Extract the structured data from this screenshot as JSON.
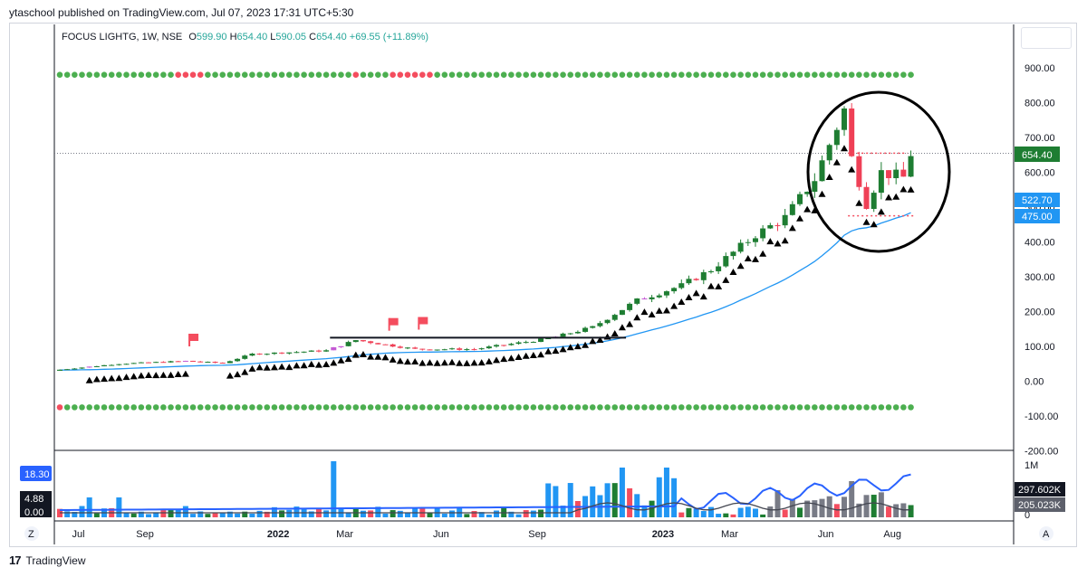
{
  "header": {
    "published": "ytaschool published on TradingView.com, Jul 07, 2023 17:31 UTC+5:30"
  },
  "legend": {
    "symbol": "FOCUS LIGHTG, 1W, NSE",
    "o_label": "O",
    "o": "599.90",
    "h_label": "H",
    "h": "654.40",
    "l_label": "L",
    "l": "590.05",
    "c_label": "C",
    "c": "654.40",
    "change": "+69.55 (+11.89%)"
  },
  "price_labels": {
    "last": "654.40",
    "ma": "522.70",
    "level": "475.00"
  },
  "volume_labels": {
    "left_top": "18.30",
    "left_mid": "4.88",
    "left_bottom": "0.00",
    "right_1m": "1M",
    "right_0": "0",
    "vol_a": "297.602K",
    "vol_b": "205.023K"
  },
  "scale_buttons": {
    "z": "Z",
    "a": "A"
  },
  "footer": {
    "brand": "TradingView"
  },
  "colors": {
    "up": "#1e7d32",
    "down": "#ef4056",
    "purple": "#c45ad4",
    "ma": "#2196f3",
    "vol_blue": "#2196f3",
    "dot_green": "#4caf50",
    "dot_red": "#f44d5e"
  },
  "chart_data": {
    "type": "candlestick",
    "timeframe": "1W",
    "y_ticks": [
      "900.00",
      "800.00",
      "700.00",
      "600.00",
      "500.00",
      "400.00",
      "300.00",
      "200.00",
      "100.00",
      "0.00",
      "-100.00",
      "-200.00"
    ],
    "ylim": [
      -200,
      900
    ],
    "x_ticks": [
      {
        "label": "Jul",
        "i": 3,
        "bold": false
      },
      {
        "label": "Sep",
        "i": 12,
        "bold": false
      },
      {
        "label": "2022",
        "i": 30,
        "bold": true
      },
      {
        "label": "Mar",
        "i": 39,
        "bold": false
      },
      {
        "label": "Jun",
        "i": 52,
        "bold": false
      },
      {
        "label": "Sep",
        "i": 65,
        "bold": false
      },
      {
        "label": "2023",
        "i": 82,
        "bold": true
      },
      {
        "label": "Mar",
        "i": 91,
        "bold": false
      },
      {
        "label": "Jun",
        "i": 104,
        "bold": false
      },
      {
        "label": "Aug",
        "i": 113,
        "bold": false
      }
    ],
    "overlay_lines": {
      "last_close": 654.4,
      "resistance": 655,
      "support": 475,
      "box_top": 125
    },
    "dot_rows": {
      "top_value": 880,
      "bottom_value": -75,
      "top_red_ranges": [
        [
          16,
          19
        ],
        [
          40,
          40
        ],
        [
          45,
          50
        ]
      ],
      "bottom_red_ranges": [
        [
          0,
          0
        ]
      ]
    }
  }
}
